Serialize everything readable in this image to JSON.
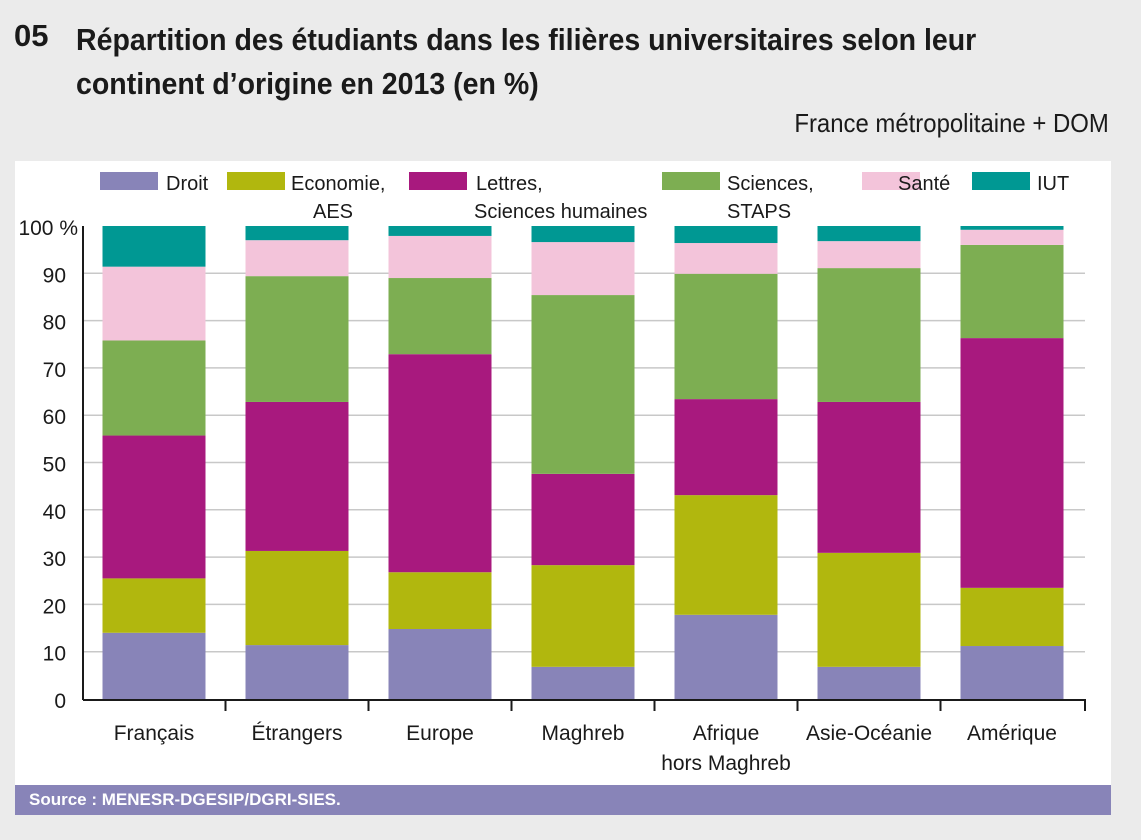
{
  "header": {
    "number": "05",
    "title": "Répartition des étudiants dans les filières universitaires selon leur continent d’origine en 2013 (en %)",
    "subtitle": "France métropolitaine + DOM"
  },
  "source": "Source : MENESR-DGESIP/DGRI-SIES.",
  "chart_data": {
    "type": "bar",
    "stacked": true,
    "title": "Répartition des étudiants dans les filières universitaires selon leur continent d’origine en 2013 (en %)",
    "ylabel": "",
    "ylim": [
      0,
      100
    ],
    "yticks": [
      {
        "v": 0,
        "label": "0"
      },
      {
        "v": 10,
        "label": "10"
      },
      {
        "v": 20,
        "label": "20"
      },
      {
        "v": 30,
        "label": "30"
      },
      {
        "v": 40,
        "label": "40"
      },
      {
        "v": 50,
        "label": "50"
      },
      {
        "v": 60,
        "label": "60"
      },
      {
        "v": 70,
        "label": "70"
      },
      {
        "v": 80,
        "label": "80"
      },
      {
        "v": 90,
        "label": "90"
      },
      {
        "v": 100,
        "label": "100 %"
      }
    ],
    "grid": true,
    "legend_position": "top",
    "categories": [
      [
        "Français"
      ],
      [
        "Étrangers"
      ],
      [
        "Europe"
      ],
      [
        "Maghreb"
      ],
      [
        "Afrique",
        "hors Maghreb"
      ],
      [
        "Asie-Océanie"
      ],
      [
        "Amérique"
      ]
    ],
    "series": [
      {
        "name": [
          "Droit"
        ],
        "color": "#8884b8",
        "values": [
          14.0,
          11.4,
          14.8,
          6.8,
          17.8,
          6.8,
          11.2
        ]
      },
      {
        "name": [
          "Economie,",
          "AES"
        ],
        "color": "#b1b70e",
        "values": [
          11.5,
          19.9,
          12.0,
          21.5,
          25.3,
          24.1,
          12.3
        ]
      },
      {
        "name": [
          "Lettres,",
          "Sciences humaines"
        ],
        "color": "#a8197e",
        "values": [
          30.2,
          31.5,
          46.1,
          19.3,
          20.3,
          31.9,
          52.8
        ]
      },
      {
        "name": [
          "Sciences,",
          "STAPS"
        ],
        "color": "#7dae52",
        "values": [
          20.1,
          26.6,
          16.1,
          37.8,
          26.5,
          28.3,
          19.7
        ]
      },
      {
        "name": [
          "Santé"
        ],
        "color": "#f3c4da",
        "values": [
          15.6,
          7.6,
          8.9,
          11.2,
          6.5,
          5.7,
          3.2
        ]
      },
      {
        "name": [
          "IUT"
        ],
        "color": "#009893",
        "values": [
          8.6,
          3.0,
          2.1,
          3.4,
          3.6,
          3.2,
          0.8
        ]
      }
    ]
  }
}
